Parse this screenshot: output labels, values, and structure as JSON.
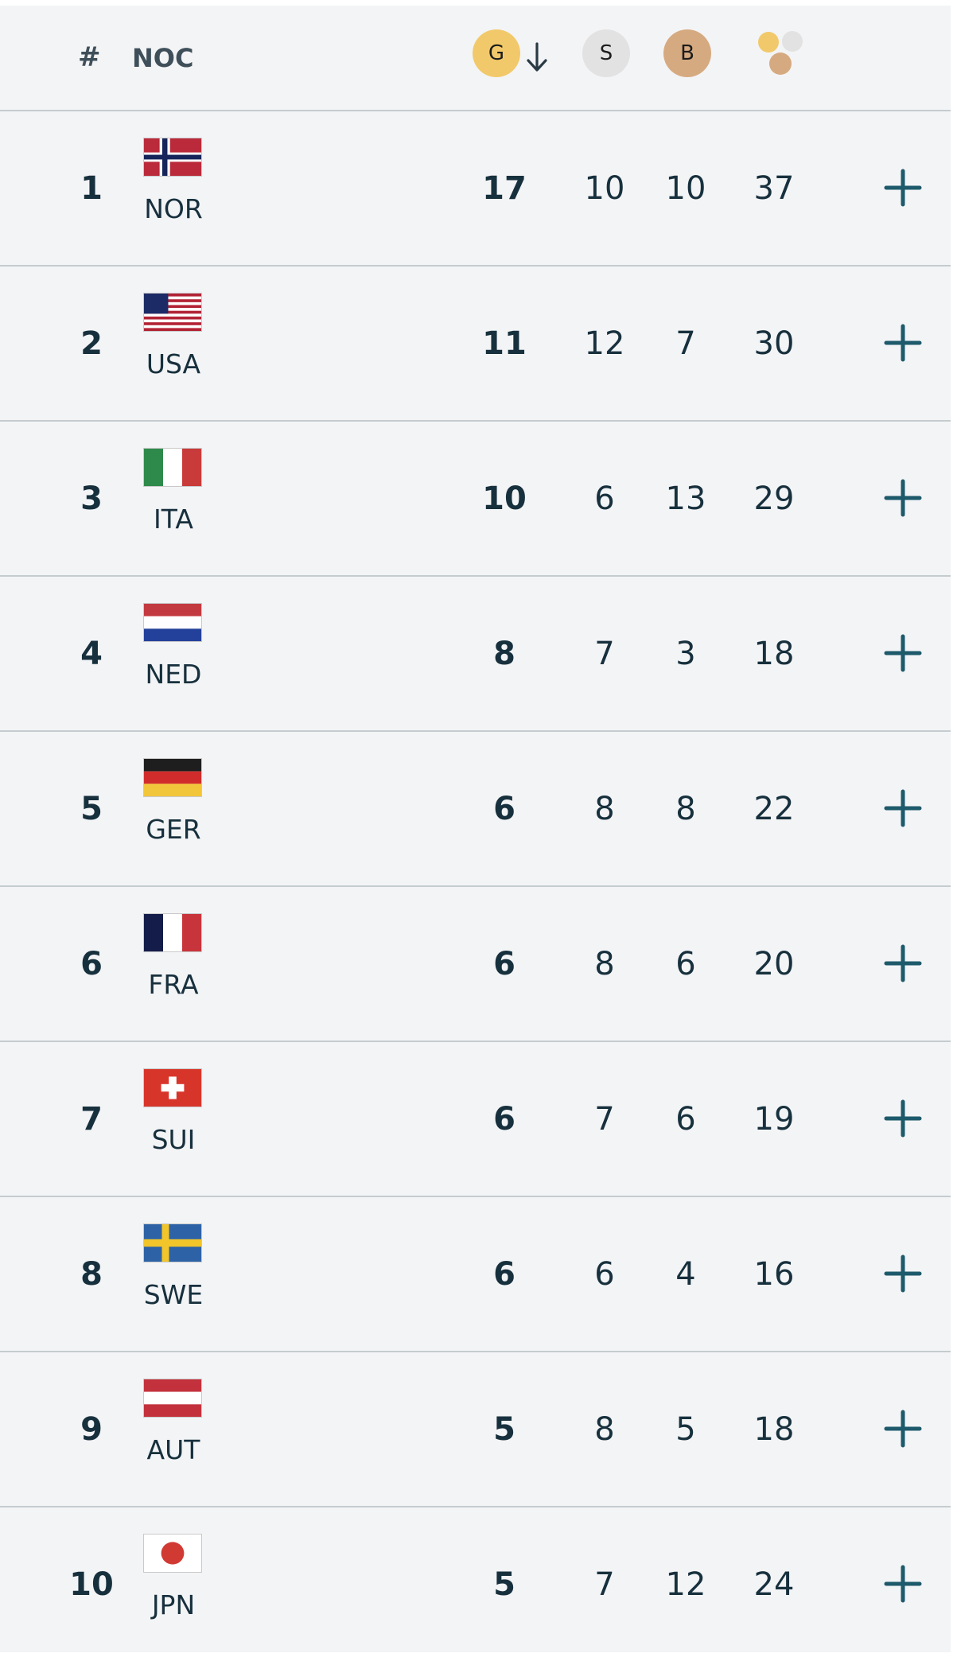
{
  "header": {
    "rank_label": "#",
    "noc_label": "NOC",
    "gold_label": "G",
    "silver_label": "S",
    "bronze_label": "B",
    "sort_icon": "arrow-down-icon",
    "total_icon": "medals-total-icon"
  },
  "colors": {
    "gold": "#f2c96a",
    "silver": "#e2e2e2",
    "bronze": "#d6aa80",
    "accent": "#1d5a6b",
    "text": "#17303d"
  },
  "rows": [
    {
      "rank": "1",
      "code": "NOR",
      "gold": "17",
      "silver": "10",
      "bronze": "10",
      "total": "37",
      "flag": "norway-flag"
    },
    {
      "rank": "2",
      "code": "USA",
      "gold": "11",
      "silver": "12",
      "bronze": "7",
      "total": "30",
      "flag": "usa-flag"
    },
    {
      "rank": "3",
      "code": "ITA",
      "gold": "10",
      "silver": "6",
      "bronze": "13",
      "total": "29",
      "flag": "italy-flag"
    },
    {
      "rank": "4",
      "code": "NED",
      "gold": "8",
      "silver": "7",
      "bronze": "3",
      "total": "18",
      "flag": "netherlands-flag"
    },
    {
      "rank": "5",
      "code": "GER",
      "gold": "6",
      "silver": "8",
      "bronze": "8",
      "total": "22",
      "flag": "germany-flag"
    },
    {
      "rank": "6",
      "code": "FRA",
      "gold": "6",
      "silver": "8",
      "bronze": "6",
      "total": "20",
      "flag": "france-flag"
    },
    {
      "rank": "7",
      "code": "SUI",
      "gold": "6",
      "silver": "7",
      "bronze": "6",
      "total": "19",
      "flag": "switzerland-flag"
    },
    {
      "rank": "8",
      "code": "SWE",
      "gold": "6",
      "silver": "6",
      "bronze": "4",
      "total": "16",
      "flag": "sweden-flag"
    },
    {
      "rank": "9",
      "code": "AUT",
      "gold": "5",
      "silver": "8",
      "bronze": "5",
      "total": "18",
      "flag": "austria-flag"
    },
    {
      "rank": "10",
      "code": "JPN",
      "gold": "5",
      "silver": "7",
      "bronze": "12",
      "total": "24",
      "flag": "japan-flag"
    }
  ]
}
